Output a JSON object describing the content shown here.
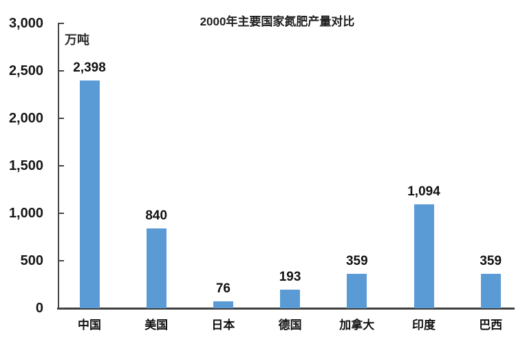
{
  "chart_data": {
    "type": "bar",
    "title": "2000年主要国家氮肥产量对比",
    "unit_label": "万吨",
    "categories": [
      "中国",
      "美国",
      "日本",
      "德国",
      "加拿大",
      "印度",
      "巴西"
    ],
    "values": [
      2398,
      840,
      76,
      193,
      359,
      1094,
      359
    ],
    "value_labels": [
      "2,398",
      "840",
      "76",
      "193",
      "359",
      "1,094",
      "359"
    ],
    "xlabel": "",
    "ylabel": "万吨",
    "ylim": [
      0,
      3000
    ],
    "ytick_interval": 500,
    "ytick_labels": [
      "3,000",
      "2,500",
      "2,000",
      "1,500",
      "1,000",
      "500",
      "0"
    ],
    "grid": false,
    "legend_position": "none",
    "bar_color": "#5b9bd5",
    "axis_color": "#454545",
    "text_color": "#161616",
    "background_color": "#ffffff"
  }
}
